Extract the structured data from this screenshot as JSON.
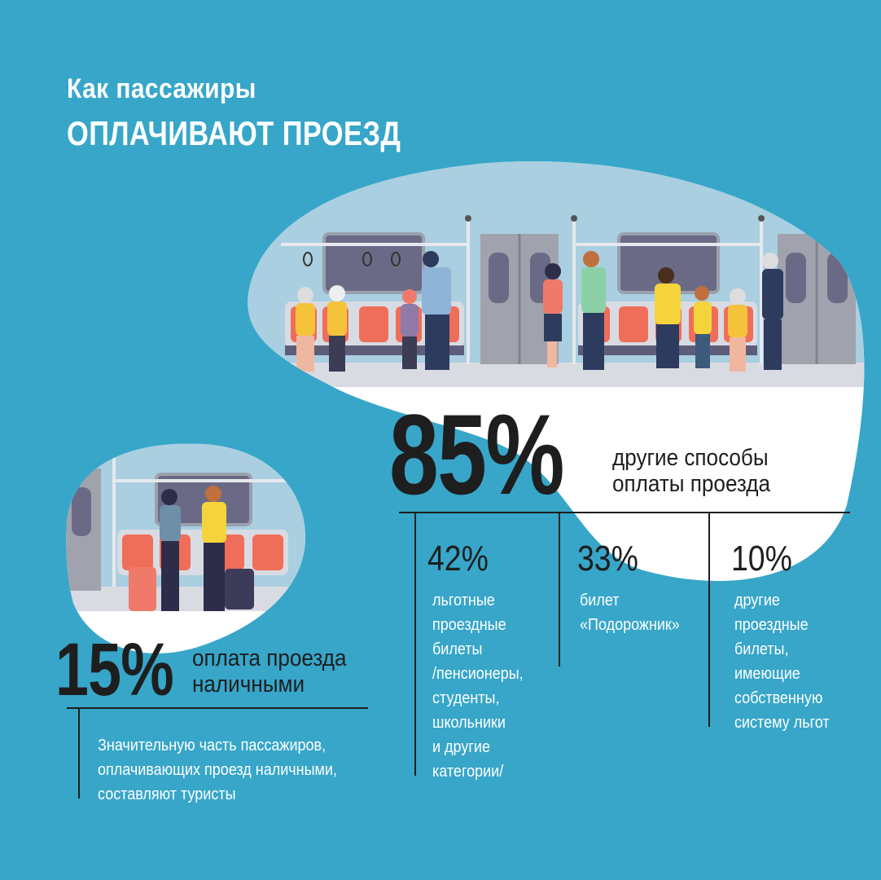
{
  "title": {
    "line1": "Как пассажиры",
    "line2": "ОПЛАЧИВАЮТ ПРОЕЗД"
  },
  "main_stat": {
    "percent": "85%",
    "caption_line1": "другие способы",
    "caption_line2": "оплаты проезда"
  },
  "breakdown": [
    {
      "percent": "42%",
      "text": "льготные\nпроездные\nбилеты\n/пенсионеры,\nстуденты,\nшкольники\nи другие\nкатегории/"
    },
    {
      "percent": "33%",
      "text": "билет\n«Подорожник»"
    },
    {
      "percent": "10%",
      "text": "другие\nпроездные\nбилеты,\nимеющие\nсобственную\nсистему льгот"
    }
  ],
  "cash_stat": {
    "percent": "15%",
    "caption_line1": "оплата проезда",
    "caption_line2": "наличными",
    "note": "Значительную часть пассажиров,\nоплачивающих проезд наличными,\nсоставляют туристы"
  },
  "colors": {
    "background": "#37a6c9",
    "bubble": "#ffffff",
    "text_dark": "#1e1e1e",
    "text_light": "#ffffff",
    "seat": "#ef6e59",
    "window": "#6b6a86"
  }
}
